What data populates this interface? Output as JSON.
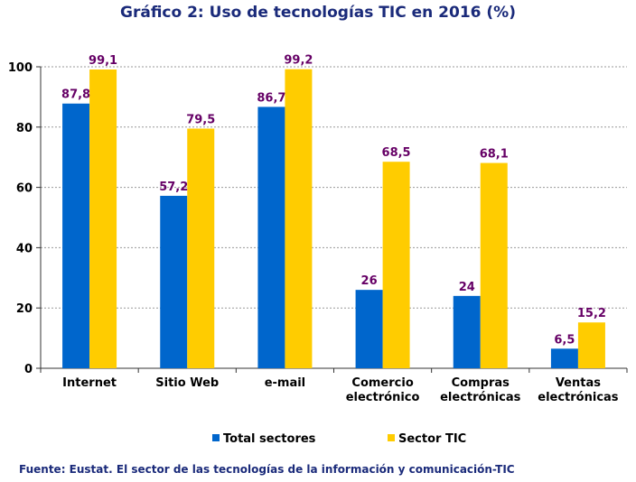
{
  "chart_data": {
    "type": "bar",
    "title": "Gráfico 2: Uso de tecnologías  TIC en 2016 (%)",
    "categories": [
      [
        "Internet"
      ],
      [
        "Sitio Web"
      ],
      [
        "e-mail"
      ],
      [
        "Comercio",
        "electrónico"
      ],
      [
        "Compras",
        "electrónicas"
      ],
      [
        "Ventas",
        "electrónicas"
      ]
    ],
    "series": [
      {
        "name": "Total sectores",
        "color": "#0066cc",
        "values": [
          87.8,
          57.2,
          86.7,
          26,
          24,
          6.5
        ],
        "labels": [
          "87,8",
          "57,2",
          "86,7",
          "26",
          "24",
          "6,5"
        ]
      },
      {
        "name": "Sector TIC",
        "color": "#ffcc00",
        "values": [
          99.1,
          79.5,
          99.2,
          68.5,
          68.1,
          15.2
        ],
        "labels": [
          "99,1",
          "79,5",
          "99,2",
          "68,5",
          "68,1",
          "15,2"
        ]
      }
    ],
    "ylim": [
      0,
      100
    ],
    "yticks": [
      0,
      20,
      40,
      60,
      80,
      100
    ],
    "grid": true,
    "legend_position": "bottom",
    "label_color": "#660066"
  },
  "source": "Fuente: Eustat. El sector de las tecnologías de la información y comunicación-TIC"
}
